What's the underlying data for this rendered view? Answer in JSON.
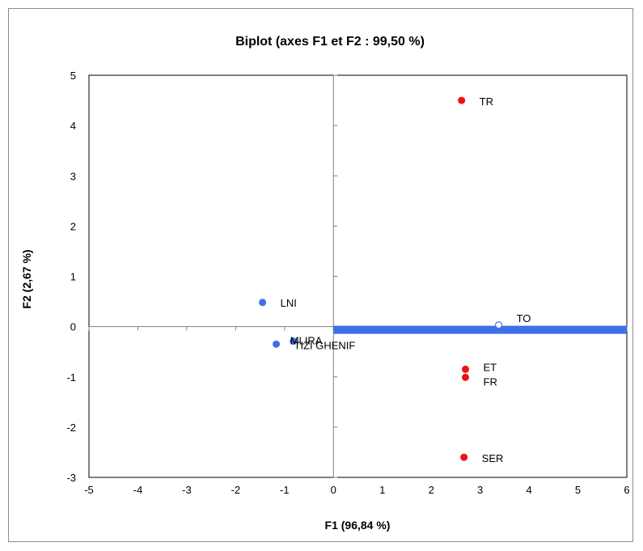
{
  "chart_data": {
    "type": "scatter",
    "title": "Biplot (axes F1 et F2 : 99,50 %)",
    "xlabel": "F1 (96,84 %)",
    "ylabel": "F2 (2,67 %)",
    "xlim": [
      -5,
      6
    ],
    "ylim": [
      -3,
      5
    ],
    "xticks": [
      -5,
      -4,
      -3,
      -2,
      -1,
      0,
      1,
      2,
      3,
      4,
      5,
      6
    ],
    "yticks": [
      -3,
      -2,
      -1,
      0,
      1,
      2,
      3,
      4,
      5
    ],
    "grid": false,
    "legend": "none",
    "colors": {
      "observations": "#3f6fe8",
      "variables": "#ee1111",
      "vector": "#3f6fe8"
    },
    "series": [
      {
        "points": [
          {
            "label": "LNI",
            "x": -1.45,
            "y": 0.48
          },
          {
            "label": "MLIRA",
            "x": -0.82,
            "y": -0.29
          },
          {
            "label": "TIZI GHENIF",
            "x": -1.17,
            "y": -0.35
          }
        ]
      },
      {
        "points": [
          {
            "label": "TR",
            "x": 2.62,
            "y": 4.5
          },
          {
            "label": "ET",
            "x": 2.7,
            "y": -0.85
          },
          {
            "label": "FR",
            "x": 2.7,
            "y": -1.01
          },
          {
            "label": "SER",
            "x": 2.67,
            "y": -2.6
          }
        ]
      }
    ],
    "supplementary": [
      {
        "label": "TO",
        "x": 3.38,
        "y": 0.03
      }
    ],
    "vector": {
      "x0": 0,
      "y0": 0,
      "x1": 6,
      "y1": 0
    }
  }
}
